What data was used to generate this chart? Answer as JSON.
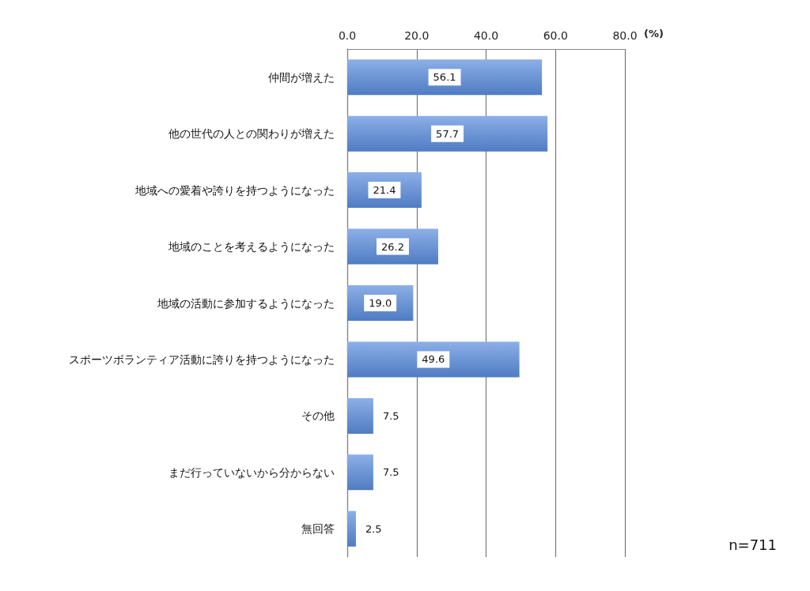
{
  "chart_data": {
    "type": "bar",
    "orientation": "horizontal",
    "categories": [
      "仲間が増えた",
      "他の世代の人との関わりが増えた",
      "地域への愛着や誇りを持つようになった",
      "地域のことを考えるようになった",
      "地域の活動に参加するようになった",
      "スポーツボランティア活動に誇りを持つようになった",
      "その他",
      "まだ行っていないから分からない",
      "無回答"
    ],
    "values": [
      56.1,
      57.7,
      21.4,
      26.2,
      19.0,
      49.6,
      7.5,
      7.5,
      2.5
    ],
    "value_labels": [
      "56.1",
      "57.7",
      "21.4",
      "26.2",
      "19.0",
      "49.6",
      "7.5",
      "7.5",
      "2.5"
    ],
    "color": "#5a8ddc",
    "xlabel": "(%)",
    "xlim": [
      0,
      80
    ],
    "xticks": [
      {
        "value": 0,
        "label": "0.0"
      },
      {
        "value": 20,
        "label": "20.0"
      },
      {
        "value": 40,
        "label": "40.0"
      },
      {
        "value": 60,
        "label": "60.0"
      },
      {
        "value": 80,
        "label": "80.0"
      }
    ],
    "grid": "x",
    "annotations": [
      "n=711"
    ]
  }
}
